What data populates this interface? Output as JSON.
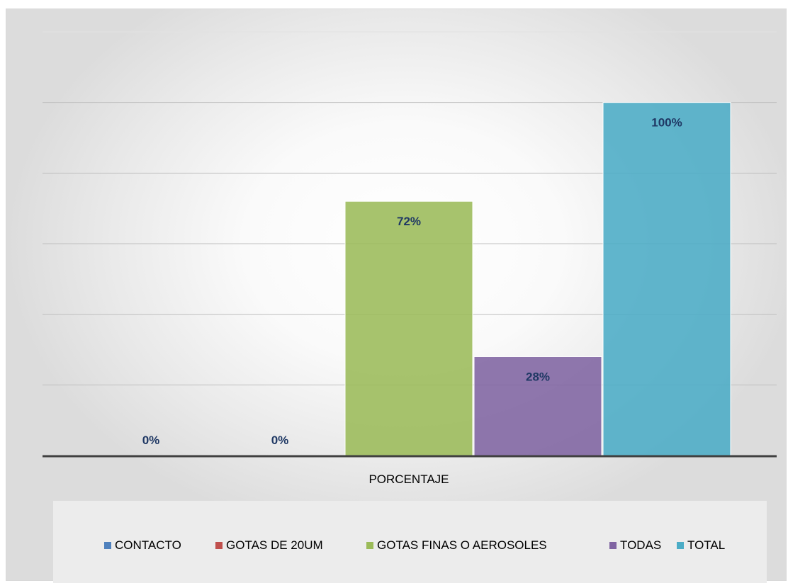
{
  "chart_data": {
    "type": "bar",
    "categories": [
      "PORCENTAJE"
    ],
    "series": [
      {
        "name": "CONTACTO",
        "values": [
          0
        ],
        "label": "0%",
        "color": "#4f81bd"
      },
      {
        "name": "GOTAS DE 20UM",
        "values": [
          0
        ],
        "label": "0%",
        "color": "#c0504d"
      },
      {
        "name": "GOTAS FINAS O AEROSOLES",
        "values": [
          72
        ],
        "label": "72%",
        "color": "#9bbb59"
      },
      {
        "name": "TODAS",
        "values": [
          28
        ],
        "label": "28%",
        "color": "#8064a2"
      },
      {
        "name": "TOTAL",
        "values": [
          100
        ],
        "label": "100%",
        "color": "#4bacc6"
      }
    ],
    "ylim": [
      0,
      120
    ],
    "grid": true,
    "legend": "bottom",
    "title": "",
    "xlabel": "",
    "ylabel": ""
  }
}
